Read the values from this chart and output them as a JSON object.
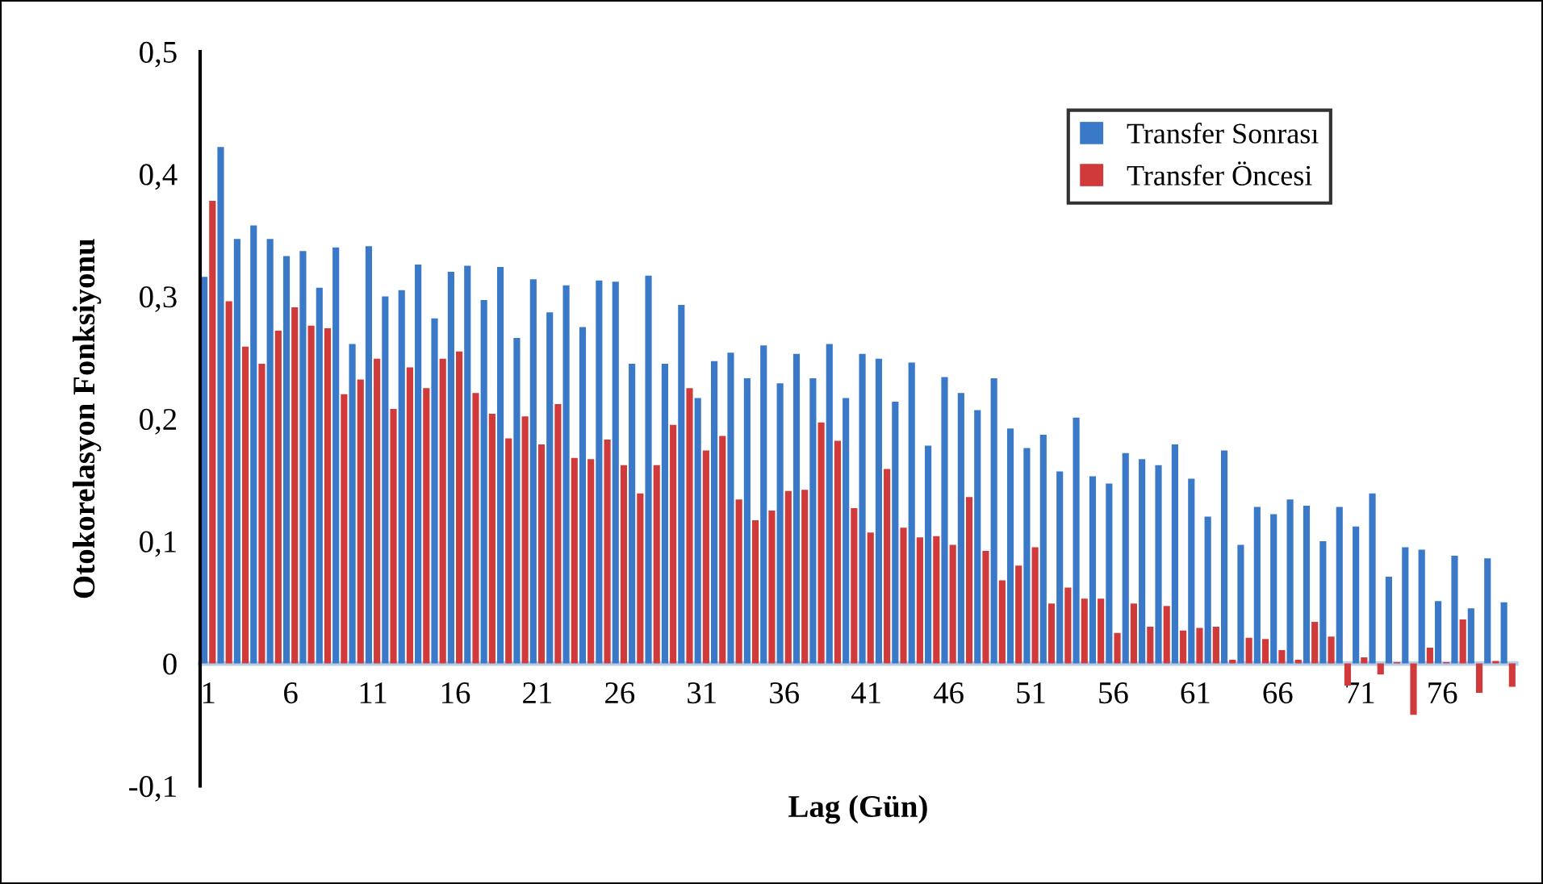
{
  "chart_data": {
    "type": "bar",
    "xlabel": "Lag (Gün)",
    "ylabel": "Otokorelasyon Fonksiyonu",
    "categories": [
      "1",
      null,
      null,
      null,
      null,
      "6",
      null,
      null,
      null,
      null,
      "11",
      null,
      null,
      null,
      null,
      "16",
      null,
      null,
      null,
      null,
      "21",
      null,
      null,
      null,
      null,
      "26",
      null,
      null,
      null,
      null,
      "31",
      null,
      null,
      null,
      null,
      "36",
      null,
      null,
      null,
      null,
      "41",
      null,
      null,
      null,
      null,
      "46",
      null,
      null,
      null,
      null,
      "51",
      null,
      null,
      null,
      null,
      "56",
      null,
      null,
      null,
      null,
      "61",
      null,
      null,
      null,
      null,
      "66",
      null,
      null,
      null,
      null,
      "71",
      null,
      null,
      null,
      null,
      "76",
      null,
      null,
      null,
      null
    ],
    "series": [
      {
        "name": "Transfer Sonrası",
        "color": "#3a78c8",
        "values": [
          0.316,
          0.422,
          0.347,
          0.358,
          0.347,
          0.333,
          0.337,
          0.307,
          0.34,
          0.261,
          0.341,
          0.3,
          0.305,
          0.326,
          0.282,
          0.32,
          0.325,
          0.297,
          0.324,
          0.266,
          0.314,
          0.287,
          0.309,
          0.275,
          0.313,
          0.312,
          0.245,
          0.317,
          0.245,
          0.293,
          0.217,
          0.247,
          0.254,
          0.233,
          0.26,
          0.229,
          0.253,
          0.233,
          0.261,
          0.217,
          0.253,
          0.249,
          0.214,
          0.246,
          0.178,
          0.234,
          0.221,
          0.207,
          0.233,
          0.192,
          0.176,
          0.187,
          0.157,
          0.201,
          0.153,
          0.147,
          0.172,
          0.167,
          0.162,
          0.179,
          0.151,
          0.12,
          0.174,
          0.097,
          0.128,
          0.122,
          0.134,
          0.129,
          0.1,
          0.128,
          0.112,
          0.139,
          0.071,
          0.095,
          0.093,
          0.051,
          0.088,
          0.045,
          0.086,
          0.05
        ]
      },
      {
        "name": "Transfer Öncesi",
        "color": "#d03a3a",
        "values": [
          0.378,
          0.296,
          0.259,
          0.245,
          0.272,
          0.291,
          0.276,
          0.274,
          0.22,
          0.232,
          0.249,
          0.208,
          0.242,
          0.225,
          0.249,
          0.255,
          0.221,
          0.204,
          0.184,
          0.202,
          0.179,
          0.212,
          0.168,
          0.167,
          0.183,
          0.162,
          0.139,
          0.162,
          0.195,
          0.225,
          0.174,
          0.186,
          0.134,
          0.117,
          0.125,
          0.141,
          0.142,
          0.197,
          0.182,
          0.127,
          0.107,
          0.159,
          0.111,
          0.103,
          0.104,
          0.097,
          0.136,
          0.092,
          0.068,
          0.08,
          0.095,
          0.049,
          0.062,
          0.053,
          0.053,
          0.025,
          0.049,
          0.03,
          0.047,
          0.027,
          0.029,
          0.03,
          0.003,
          0.021,
          0.02,
          0.011,
          0.003,
          0.034,
          0.022,
          -0.018,
          0.005,
          -0.009,
          0.001,
          -0.042,
          0.013,
          0.001,
          0.036,
          -0.024,
          0.002,
          -0.019
        ]
      }
    ],
    "ylim": [
      -0.1,
      0.5
    ],
    "yticks": [
      {
        "value": -0.1,
        "label": "-0,1"
      },
      0,
      {
        "value": 0.1,
        "label": "0,1"
      },
      {
        "value": 0.2,
        "label": "0,2"
      },
      {
        "value": 0.3,
        "label": "0,3"
      },
      {
        "value": 0.4,
        "label": "0,4"
      },
      {
        "value": 0.5,
        "label": "0,5"
      }
    ],
    "legend": "top right",
    "grid": false
  }
}
